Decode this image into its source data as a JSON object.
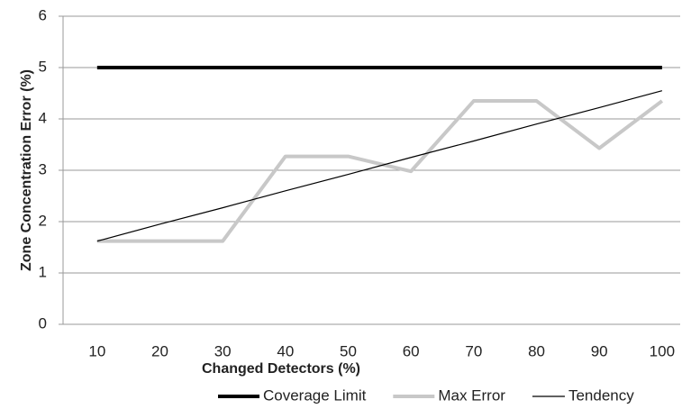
{
  "chart_data": {
    "type": "line",
    "x_label": "Changed Detectors (%)",
    "y_label": "Zone Concentration Error (%)",
    "categories": [
      "10",
      "20",
      "30",
      "40",
      "50",
      "60",
      "70",
      "80",
      "90",
      "100"
    ],
    "series": [
      {
        "name": "Coverage Limit",
        "color": "#000000",
        "line_width": 4,
        "values": [
          5,
          5,
          5,
          5,
          5,
          5,
          5,
          5,
          5,
          5
        ]
      },
      {
        "name": "Max Error",
        "color": "#c8c8c8",
        "line_width": 4,
        "values": [
          1.62,
          1.62,
          1.62,
          3.27,
          3.27,
          2.98,
          4.35,
          4.35,
          3.43,
          4.35
        ]
      },
      {
        "name": "Tendency",
        "color": "#000000",
        "line_width": 1.2,
        "values": [
          1.62,
          1.95,
          2.27,
          2.6,
          2.92,
          3.25,
          3.57,
          3.9,
          4.22,
          4.55
        ]
      }
    ],
    "ylim": [
      0,
      6
    ],
    "yticks": [
      0,
      1,
      2,
      3,
      4,
      5,
      6
    ],
    "grid": true,
    "legend": "bottom"
  }
}
